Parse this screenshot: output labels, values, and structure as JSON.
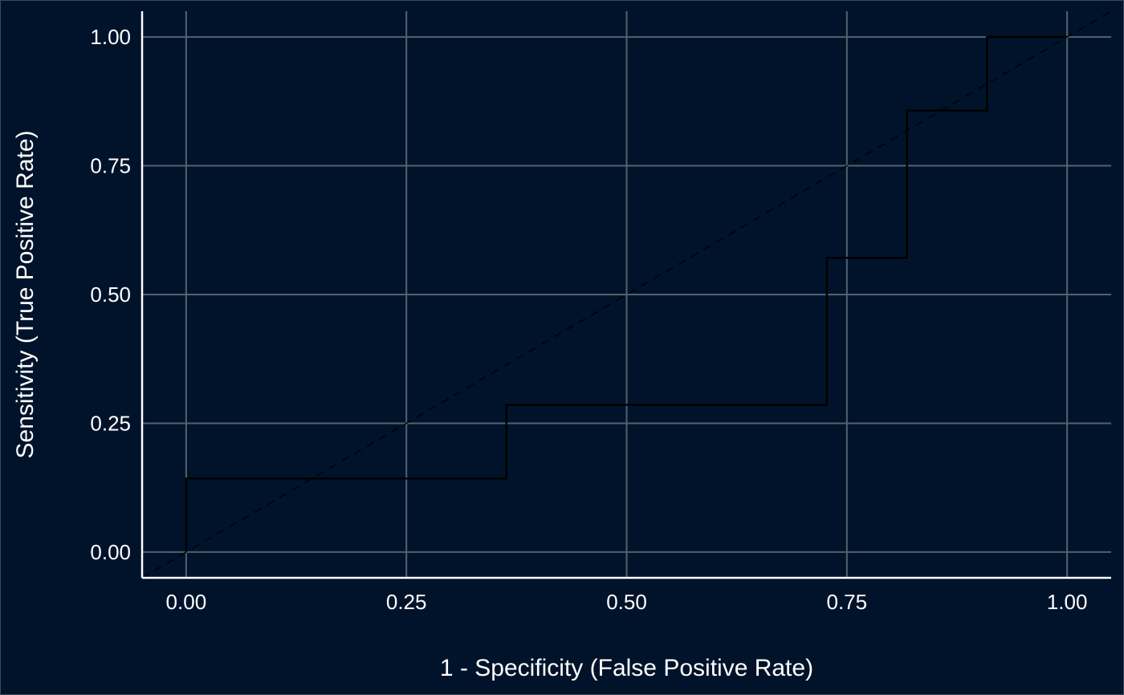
{
  "colors": {
    "background": "#00132a",
    "panel_border": "#3a4a5e",
    "grid": "#56606e",
    "axis": "#ffffff",
    "text": "#ffffff",
    "curve": "#000000",
    "diagonal": "#000000"
  },
  "chart_data": {
    "type": "line",
    "title": "",
    "xlabel": "1 - Specificity (False Positive Rate)",
    "ylabel": "Sensitivity (True Positive Rate)",
    "xlim": [
      -0.05,
      1.05
    ],
    "ylim": [
      -0.05,
      1.05
    ],
    "x_ticks": [
      0,
      0.25,
      0.5,
      0.75,
      1
    ],
    "x_tick_labels": [
      "0.00",
      "0.25",
      "0.50",
      "0.75",
      "1.00"
    ],
    "y_ticks": [
      0,
      0.25,
      0.5,
      0.75,
      1
    ],
    "y_tick_labels": [
      "0.00",
      "0.25",
      "0.50",
      "0.75",
      "1.00"
    ],
    "grid": true,
    "legend": "none",
    "series": [
      {
        "style": "step",
        "x": [
          0,
          0,
          0.3636,
          0.3636,
          0.7273,
          0.7273,
          0.8182,
          0.8182,
          0.9091,
          0.9091,
          1
        ],
        "y": [
          0,
          0.1429,
          0.1429,
          0.2857,
          0.2857,
          0.5714,
          0.5714,
          0.8571,
          0.8571,
          1,
          1
        ]
      }
    ],
    "reference_line": {
      "style": "dashed",
      "x": [
        -0.05,
        1.05
      ],
      "y": [
        -0.05,
        1.05
      ]
    }
  }
}
